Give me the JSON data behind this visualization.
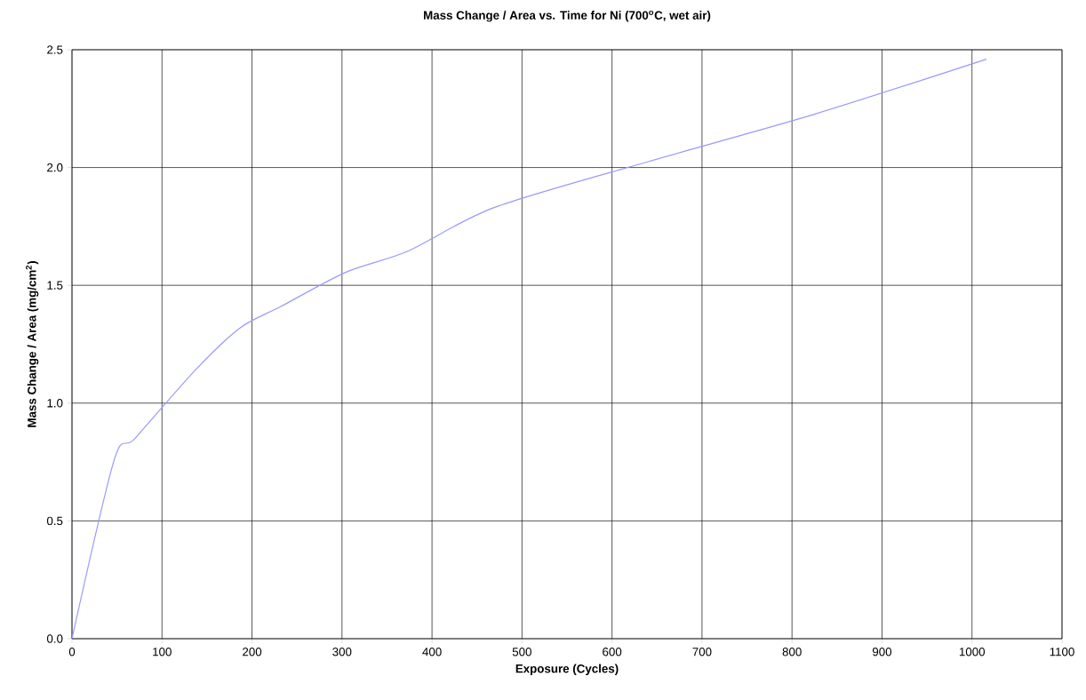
{
  "chart_data": {
    "type": "line",
    "title": "**Mass Change / Area vs. Time for Ni (700$^{o}$C, wet air)**",
    "xlabel": "Exposure (Cycles)",
    "ylabel": "Mass Change / Area (mg/cm$^{2}$)",
    "x": [
      0,
      47,
      70,
      137,
      187,
      232,
      304,
      373,
      469,
      640,
      824,
      1016
    ],
    "series": [
      {
        "color": "#9999ff",
        "values": [
          0,
          0.76,
          0.85,
          1.14,
          1.32,
          1.41,
          1.555,
          1.645,
          1.83,
          2.025,
          2.225,
          2.46
        ]
      }
    ],
    "xlim": [
      0,
      1100
    ],
    "xticks": [
      0,
      100,
      200,
      300,
      400,
      500,
      600,
      700,
      800,
      900,
      1000,
      1100
    ],
    "ylim": [
      0,
      2.5
    ],
    "yticks": [
      {
        "value": 0,
        "label": "0.0"
      },
      {
        "value": 0.5,
        "label": "0.5"
      },
      {
        "value": 1,
        "label": "1.0"
      },
      {
        "value": 1.5,
        "label": "1.5"
      },
      {
        "value": 2,
        "label": "2.0"
      },
      {
        "value": 2.5,
        "label": "2.5"
      }
    ],
    "grid": true
  }
}
